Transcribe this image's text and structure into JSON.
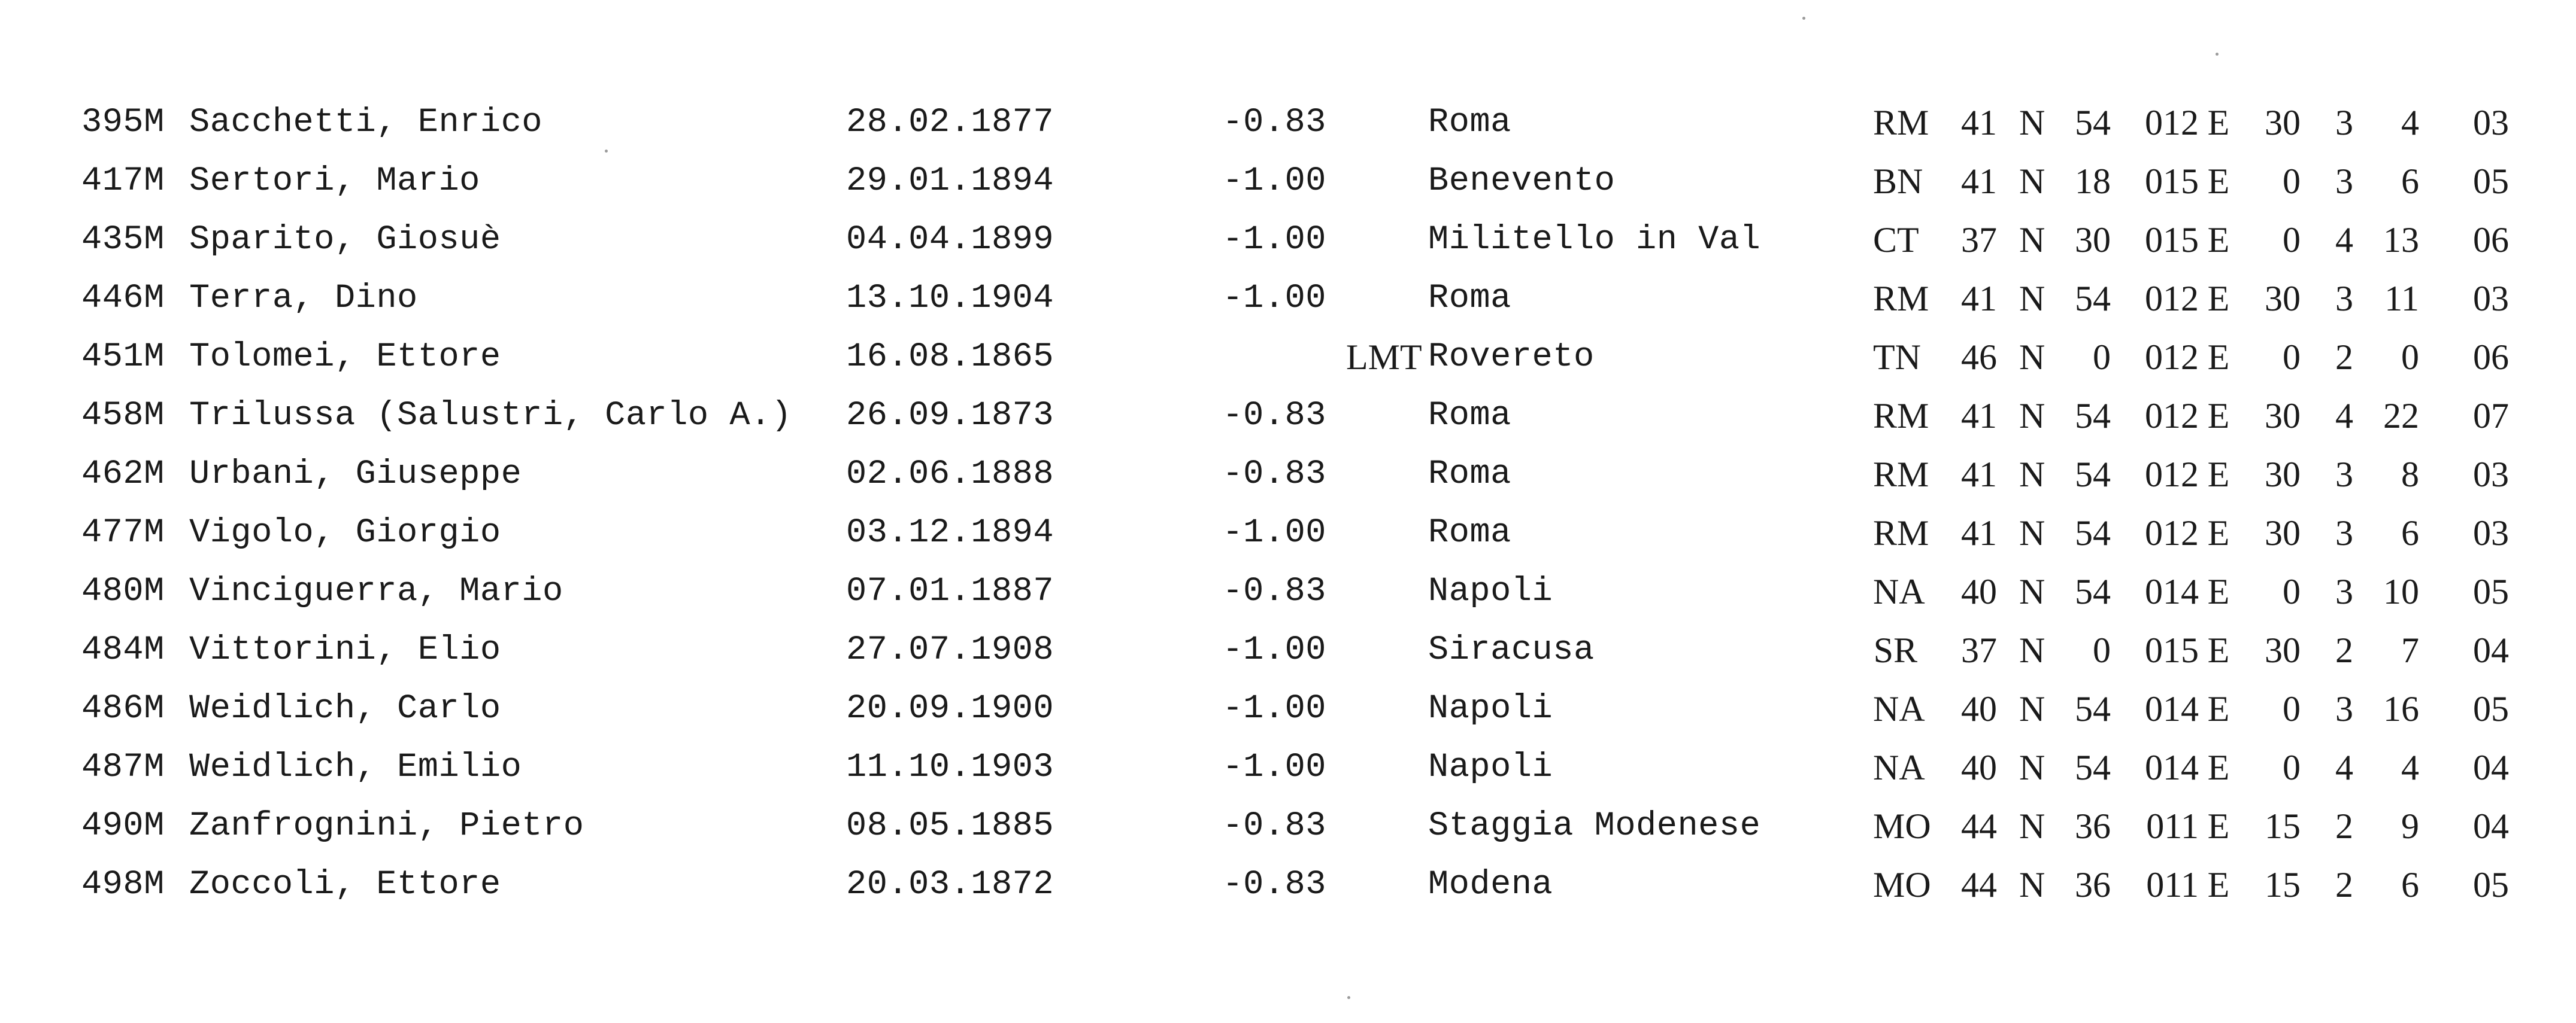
{
  "columns": [
    "id",
    "name",
    "date",
    "tz",
    "tz_label",
    "place",
    "prov",
    "lat_deg",
    "ns",
    "lat_min",
    "lon_deg",
    "ew",
    "lon_min",
    "h1",
    "h2",
    "h3"
  ],
  "rows": [
    {
      "id": "395M",
      "name": "Sacchetti, Enrico",
      "date": "28.02.1877",
      "tz": "-0.83",
      "tz_label": "",
      "place": "Roma",
      "prov": "RM",
      "lat_deg": "41",
      "ns": "N",
      "lat_min": "54",
      "lon_deg": "012",
      "ew": "E",
      "lon_min": "30",
      "h1": "3",
      "h2": "4",
      "h3": "03"
    },
    {
      "id": "417M",
      "name": "Sertori, Mario",
      "date": "29.01.1894",
      "tz": "-1.00",
      "tz_label": "",
      "place": "Benevento",
      "prov": "BN",
      "lat_deg": "41",
      "ns": "N",
      "lat_min": "18",
      "lon_deg": "015",
      "ew": "E",
      "lon_min": "0",
      "h1": "3",
      "h2": "6",
      "h3": "05"
    },
    {
      "id": "435M",
      "name": "Sparito, Giosuè",
      "date": "04.04.1899",
      "tz": "-1.00",
      "tz_label": "",
      "place": "Militello in Val",
      "prov": "CT",
      "lat_deg": "37",
      "ns": "N",
      "lat_min": "30",
      "lon_deg": "015",
      "ew": "E",
      "lon_min": "0",
      "h1": "4",
      "h2": "13",
      "h3": "06"
    },
    {
      "id": "446M",
      "name": "Terra, Dino",
      "date": "13.10.1904",
      "tz": "-1.00",
      "tz_label": "",
      "place": "Roma",
      "prov": "RM",
      "lat_deg": "41",
      "ns": "N",
      "lat_min": "54",
      "lon_deg": "012",
      "ew": "E",
      "lon_min": "30",
      "h1": "3",
      "h2": "11",
      "h3": "03"
    },
    {
      "id": "451M",
      "name": "Tolomei, Ettore",
      "date": "16.08.1865",
      "tz": "",
      "tz_label": "LMT",
      "place": "Rovereto",
      "prov": "TN",
      "lat_deg": "46",
      "ns": "N",
      "lat_min": "0",
      "lon_deg": "012",
      "ew": "E",
      "lon_min": "0",
      "h1": "2",
      "h2": "0",
      "h3": "06"
    },
    {
      "id": "458M",
      "name": "Trilussa (Salustri, Carlo A.)",
      "date": "26.09.1873",
      "tz": "-0.83",
      "tz_label": "",
      "place": "Roma",
      "prov": "RM",
      "lat_deg": "41",
      "ns": "N",
      "lat_min": "54",
      "lon_deg": "012",
      "ew": "E",
      "lon_min": "30",
      "h1": "4",
      "h2": "22",
      "h3": "07"
    },
    {
      "id": "462M",
      "name": "Urbani, Giuseppe",
      "date": "02.06.1888",
      "tz": "-0.83",
      "tz_label": "",
      "place": "Roma",
      "prov": "RM",
      "lat_deg": "41",
      "ns": "N",
      "lat_min": "54",
      "lon_deg": "012",
      "ew": "E",
      "lon_min": "30",
      "h1": "3",
      "h2": "8",
      "h3": "03"
    },
    {
      "id": "477M",
      "name": "Vigolo, Giorgio",
      "date": "03.12.1894",
      "tz": "-1.00",
      "tz_label": "",
      "place": "Roma",
      "prov": "RM",
      "lat_deg": "41",
      "ns": "N",
      "lat_min": "54",
      "lon_deg": "012",
      "ew": "E",
      "lon_min": "30",
      "h1": "3",
      "h2": "6",
      "h3": "03"
    },
    {
      "id": "480M",
      "name": "Vinciguerra, Mario",
      "date": "07.01.1887",
      "tz": "-0.83",
      "tz_label": "",
      "place": "Napoli",
      "prov": "NA",
      "lat_deg": "40",
      "ns": "N",
      "lat_min": "54",
      "lon_deg": "014",
      "ew": "E",
      "lon_min": "0",
      "h1": "3",
      "h2": "10",
      "h3": "05"
    },
    {
      "id": "484M",
      "name": "Vittorini, Elio",
      "date": "27.07.1908",
      "tz": "-1.00",
      "tz_label": "",
      "place": "Siracusa",
      "prov": "SR",
      "lat_deg": "37",
      "ns": "N",
      "lat_min": "0",
      "lon_deg": "015",
      "ew": "E",
      "lon_min": "30",
      "h1": "2",
      "h2": "7",
      "h3": "04"
    },
    {
      "id": "486M",
      "name": "Weidlich, Carlo",
      "date": "20.09.1900",
      "tz": "-1.00",
      "tz_label": "",
      "place": "Napoli",
      "prov": "NA",
      "lat_deg": "40",
      "ns": "N",
      "lat_min": "54",
      "lon_deg": "014",
      "ew": "E",
      "lon_min": "0",
      "h1": "3",
      "h2": "16",
      "h3": "05"
    },
    {
      "id": "487M",
      "name": "Weidlich, Emilio",
      "date": "11.10.1903",
      "tz": "-1.00",
      "tz_label": "",
      "place": "Napoli",
      "prov": "NA",
      "lat_deg": "40",
      "ns": "N",
      "lat_min": "54",
      "lon_deg": "014",
      "ew": "E",
      "lon_min": "0",
      "h1": "4",
      "h2": "4",
      "h3": "04"
    },
    {
      "id": "490M",
      "name": "Zanfrognini, Pietro",
      "date": "08.05.1885",
      "tz": "-0.83",
      "tz_label": "",
      "place": "Staggia Modenese",
      "prov": "MO",
      "lat_deg": "44",
      "ns": "N",
      "lat_min": "36",
      "lon_deg": "011",
      "ew": "E",
      "lon_min": "15",
      "h1": "2",
      "h2": "9",
      "h3": "04"
    },
    {
      "id": "498M",
      "name": "Zoccoli, Ettore",
      "date": "20.03.1872",
      "tz": "-0.83",
      "tz_label": "",
      "place": "Modena",
      "prov": "MO",
      "lat_deg": "44",
      "ns": "N",
      "lat_min": "36",
      "lon_deg": "011",
      "ew": "E",
      "lon_min": "15",
      "h1": "2",
      "h2": "6",
      "h3": "05"
    }
  ]
}
